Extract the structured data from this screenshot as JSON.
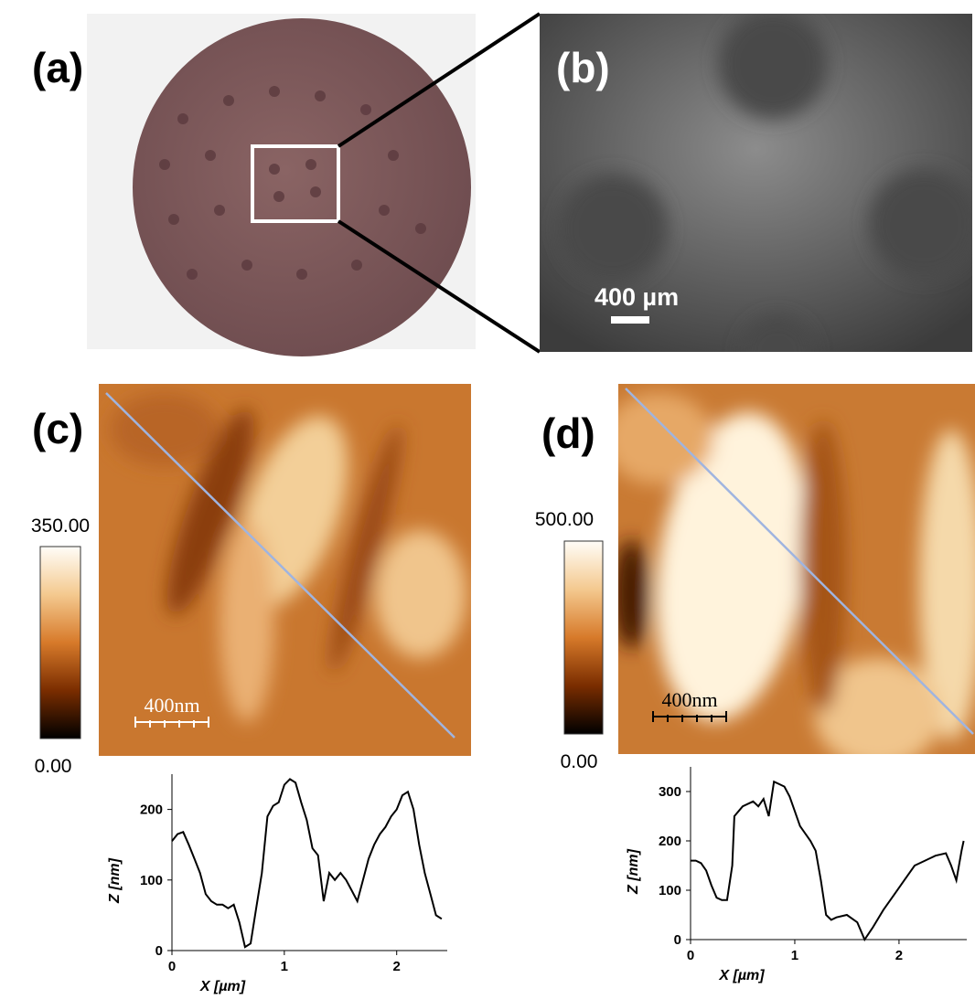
{
  "panels": {
    "a": {
      "label": "(a)"
    },
    "b": {
      "label": "(b)",
      "scale_bar": "400 µm"
    },
    "c": {
      "label": "(c)",
      "scale_bar": "400nm",
      "colorbar_max": "350.00",
      "colorbar_min": "0.00"
    },
    "d": {
      "label": "(d)",
      "scale_bar": "400nm",
      "colorbar_max": "500.00",
      "colorbar_min": "0.00"
    }
  },
  "chart_data": [
    {
      "type": "line",
      "color": "#000000",
      "x_label": "X [µm]",
      "y_label": "Z [nm]",
      "xlim": [
        0,
        2.45
      ],
      "ylim": [
        0,
        250
      ],
      "xticks": [
        0,
        1,
        2
      ],
      "yticks": [
        0,
        100,
        200
      ],
      "x": [
        0,
        0.05,
        0.1,
        0.15,
        0.2,
        0.25,
        0.3,
        0.35,
        0.4,
        0.45,
        0.5,
        0.55,
        0.6,
        0.65,
        0.7,
        0.75,
        0.8,
        0.85,
        0.9,
        0.95,
        1.0,
        1.05,
        1.1,
        1.15,
        1.2,
        1.25,
        1.3,
        1.35,
        1.4,
        1.45,
        1.5,
        1.55,
        1.6,
        1.65,
        1.7,
        1.75,
        1.8,
        1.85,
        1.9,
        1.95,
        2.0,
        2.05,
        2.1,
        2.15,
        2.2,
        2.25,
        2.3,
        2.35,
        2.4
      ],
      "values": [
        155,
        165,
        168,
        150,
        130,
        110,
        80,
        70,
        65,
        65,
        60,
        65,
        40,
        5,
        10,
        60,
        110,
        190,
        205,
        210,
        235,
        243,
        238,
        210,
        185,
        145,
        135,
        70,
        110,
        100,
        110,
        100,
        85,
        70,
        100,
        130,
        150,
        165,
        175,
        190,
        200,
        220,
        225,
        200,
        150,
        110,
        80,
        50,
        45
      ]
    },
    {
      "type": "line",
      "color": "#000000",
      "x_label": "X [µm]",
      "y_label": "Z [nm]",
      "xlim": [
        0,
        2.65
      ],
      "ylim": [
        0,
        350
      ],
      "xticks": [
        0,
        1,
        2
      ],
      "yticks": [
        0,
        100,
        200,
        300
      ],
      "x": [
        0,
        0.05,
        0.1,
        0.15,
        0.2,
        0.25,
        0.3,
        0.35,
        0.4,
        0.42,
        0.5,
        0.6,
        0.65,
        0.7,
        0.75,
        0.8,
        0.85,
        0.9,
        0.95,
        1.0,
        1.05,
        1.1,
        1.15,
        1.2,
        1.25,
        1.3,
        1.35,
        1.4,
        1.5,
        1.6,
        1.67,
        1.75,
        1.85,
        1.95,
        2.05,
        2.15,
        2.25,
        2.35,
        2.45,
        2.5,
        2.55,
        2.6,
        2.62
      ],
      "values": [
        160,
        160,
        155,
        140,
        110,
        85,
        80,
        80,
        150,
        250,
        270,
        280,
        270,
        285,
        250,
        320,
        315,
        310,
        290,
        260,
        230,
        215,
        200,
        180,
        120,
        50,
        40,
        45,
        50,
        35,
        0,
        25,
        60,
        90,
        120,
        150,
        160,
        170,
        175,
        150,
        120,
        180,
        200
      ]
    }
  ]
}
